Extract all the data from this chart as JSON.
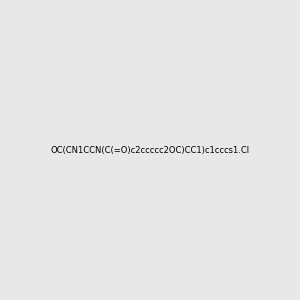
{
  "smiles": "OC(CN1CCN(C(=O)c2ccccc2OC)CC1)c1cccs1.Cl",
  "image_size": 300,
  "background_color": "#e8e8e8",
  "title": "",
  "atom_colors": {
    "N": "#0000ff",
    "O": "#ff0000",
    "S": "#cccc00",
    "Cl": "#00cc00",
    "H_label": "#555555"
  }
}
